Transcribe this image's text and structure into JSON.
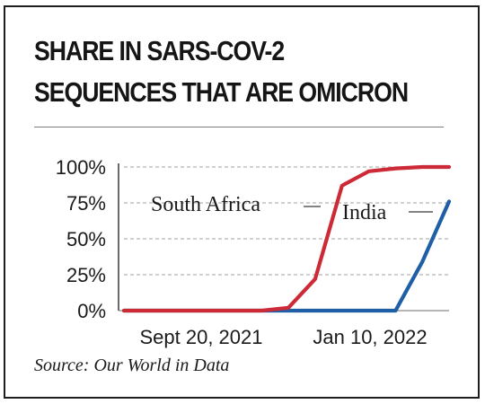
{
  "title_lines": [
    "SHARE IN SARS-COV-2",
    "SEQUENCES THAT ARE OMICRON"
  ],
  "source": "Source: Our World in Data",
  "colors": {
    "south_africa": "#cc2a36",
    "india": "#1f5fa6",
    "grid": "#b5b5b5",
    "text": "#1a1a1a",
    "frame": "#1f1f1f"
  },
  "chart_data": {
    "type": "line",
    "title": "SHARE IN SARS-COV-2 SEQUENCES THAT ARE OMICRON",
    "xlabel": "",
    "ylabel": "",
    "x_ticks": [
      "Sept 20, 2021",
      "Jan 10, 2022"
    ],
    "y_ticks": [
      "0%",
      "25%",
      "50%",
      "75%",
      "100%"
    ],
    "ylim": [
      0,
      100
    ],
    "grid": true,
    "series": [
      {
        "name": "South Africa",
        "x": [
          "2021-08-21",
          "2021-09-06",
          "2021-09-20",
          "2021-10-04",
          "2021-10-18",
          "2021-11-01",
          "2021-11-15",
          "2021-11-29",
          "2021-12-13",
          "2021-12-27",
          "2022-01-10",
          "2022-01-24",
          "2022-02-07"
        ],
        "values": [
          0,
          0,
          0,
          0,
          0,
          0,
          2,
          22,
          87,
          97,
          99,
          100,
          100
        ]
      },
      {
        "name": "India",
        "x": [
          "2021-08-21",
          "2021-09-06",
          "2021-09-20",
          "2021-10-04",
          "2021-10-18",
          "2021-11-01",
          "2021-11-15",
          "2021-11-29",
          "2021-12-13",
          "2021-12-27",
          "2022-01-10",
          "2022-01-24",
          "2022-02-07"
        ],
        "values": [
          0,
          0,
          0,
          0,
          0,
          0,
          0,
          0,
          0,
          0,
          0,
          34,
          76
        ]
      }
    ]
  }
}
